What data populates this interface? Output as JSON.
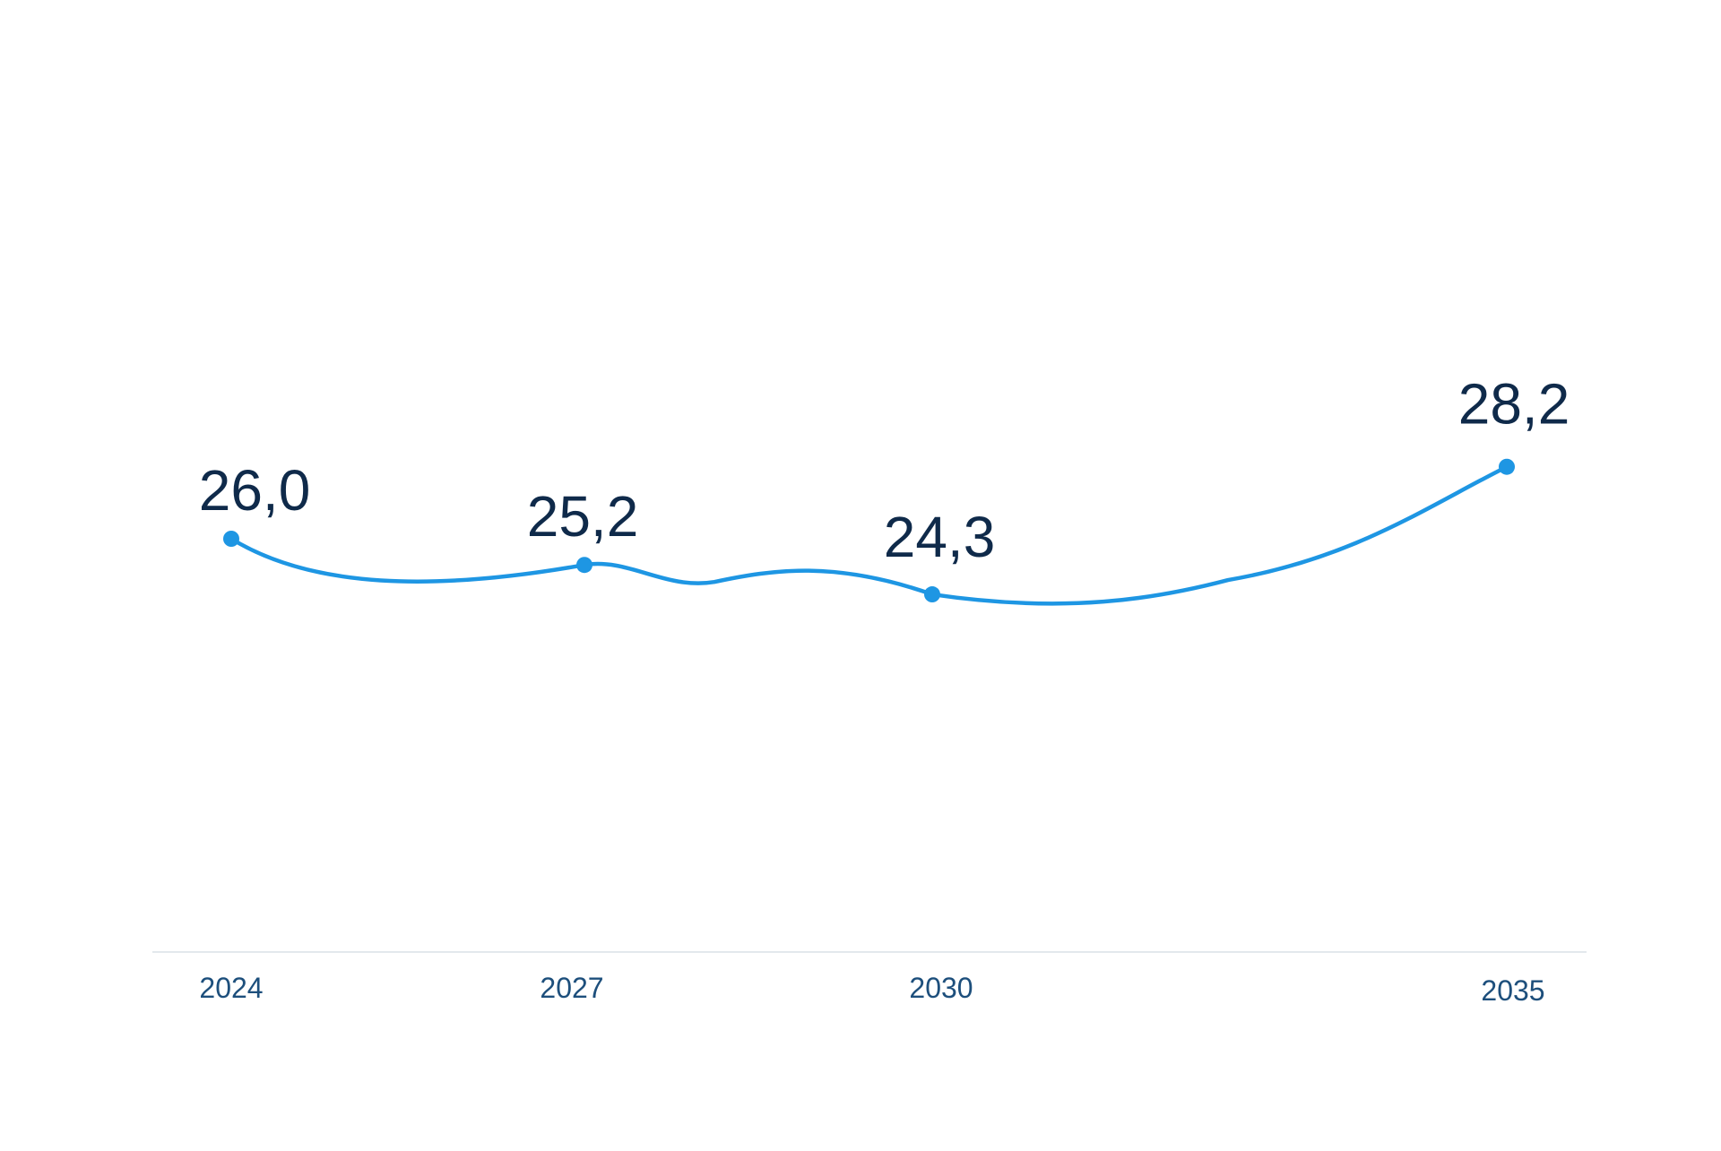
{
  "chart_data": {
    "type": "line",
    "x": [
      "2024",
      "2027",
      "2030",
      "2035"
    ],
    "series": [
      {
        "values": [
          26.0,
          25.2,
          24.3,
          28.2
        ],
        "labels": [
          "26,0",
          "25,2",
          "24,3",
          "28,2"
        ]
      }
    ],
    "tick_labels": [
      "2024",
      "2027",
      "2030",
      "2035"
    ],
    "grid": false,
    "legend": "none"
  },
  "colors": {
    "line": "#1e96e3",
    "value_text": "#0f2a4a",
    "tick_text": "#1d4f7c",
    "axis": "#e3e8ed"
  }
}
